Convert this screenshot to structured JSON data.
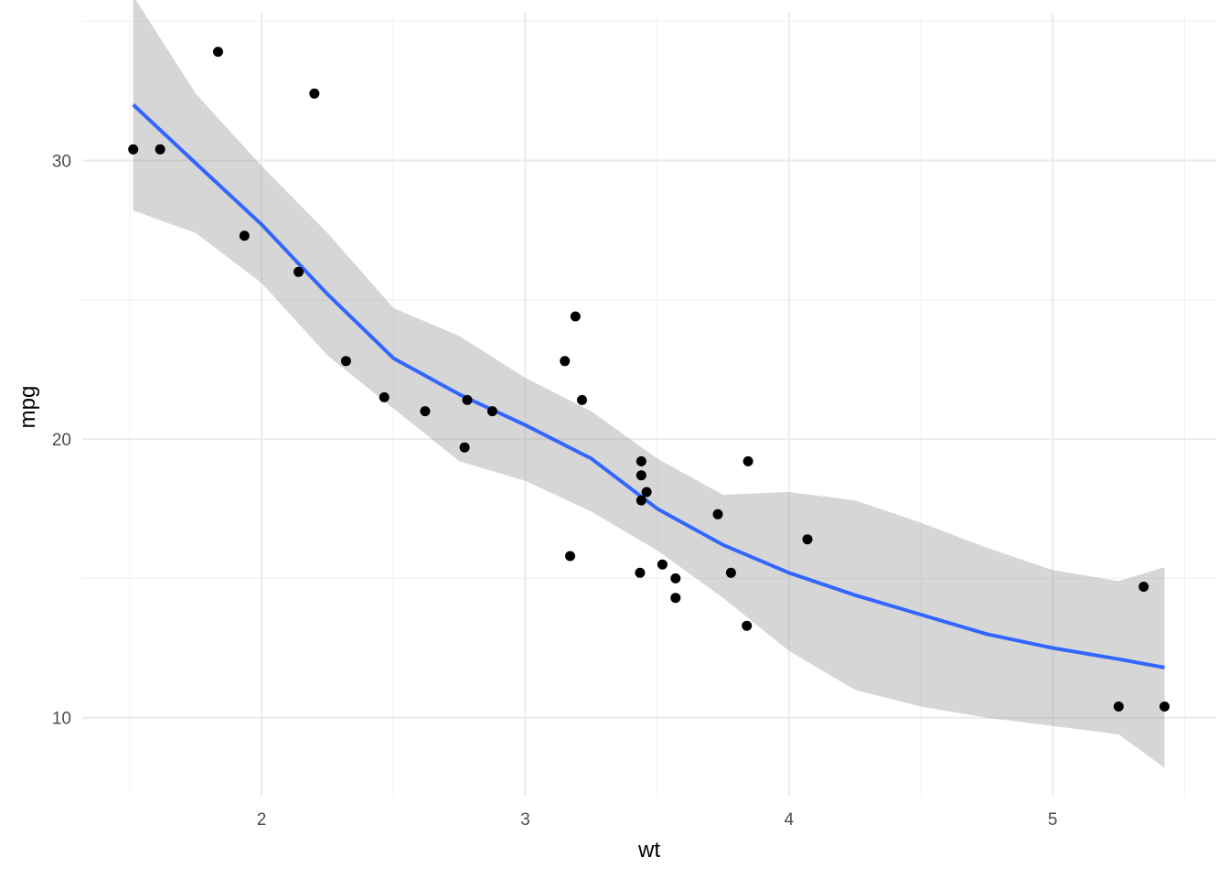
{
  "chart_data": {
    "type": "scatter",
    "xlabel": "wt",
    "ylabel": "mpg",
    "xlim": [
      1.32,
      5.62
    ],
    "ylim": [
      7.2,
      35.3
    ],
    "x_ticks": [
      2,
      3,
      4,
      5
    ],
    "x_tick_labels": [
      "2",
      "3",
      "4",
      "5"
    ],
    "y_ticks": [
      10,
      20,
      30
    ],
    "y_tick_labels": [
      "10",
      "20",
      "30"
    ],
    "x_minor_ticks": [
      1.5,
      2.5,
      3.5,
      4.5,
      5.5
    ],
    "y_minor_ticks": [
      15,
      25,
      35
    ],
    "grid": true,
    "points": [
      {
        "x": 2.62,
        "y": 21.0
      },
      {
        "x": 2.875,
        "y": 21.0
      },
      {
        "x": 2.32,
        "y": 22.8
      },
      {
        "x": 3.215,
        "y": 21.4
      },
      {
        "x": 3.44,
        "y": 18.7
      },
      {
        "x": 3.46,
        "y": 18.1
      },
      {
        "x": 3.57,
        "y": 14.3
      },
      {
        "x": 3.19,
        "y": 24.4
      },
      {
        "x": 3.15,
        "y": 22.8
      },
      {
        "x": 3.44,
        "y": 19.2
      },
      {
        "x": 3.44,
        "y": 17.8
      },
      {
        "x": 4.07,
        "y": 16.4
      },
      {
        "x": 3.73,
        "y": 17.3
      },
      {
        "x": 3.78,
        "y": 15.2
      },
      {
        "x": 5.25,
        "y": 10.4
      },
      {
        "x": 5.424,
        "y": 10.4
      },
      {
        "x": 5.345,
        "y": 14.7
      },
      {
        "x": 2.2,
        "y": 32.4
      },
      {
        "x": 1.615,
        "y": 30.4
      },
      {
        "x": 1.835,
        "y": 33.9
      },
      {
        "x": 2.465,
        "y": 21.5
      },
      {
        "x": 3.52,
        "y": 15.5
      },
      {
        "x": 3.435,
        "y": 15.2
      },
      {
        "x": 3.84,
        "y": 13.3
      },
      {
        "x": 3.845,
        "y": 19.2
      },
      {
        "x": 1.935,
        "y": 27.3
      },
      {
        "x": 2.14,
        "y": 26.0
      },
      {
        "x": 1.513,
        "y": 30.4
      },
      {
        "x": 3.17,
        "y": 15.8
      },
      {
        "x": 2.77,
        "y": 19.7
      },
      {
        "x": 3.57,
        "y": 15.0
      },
      {
        "x": 2.78,
        "y": 21.4
      }
    ],
    "smooth": {
      "x": [
        1.513,
        1.75,
        2.0,
        2.25,
        2.5,
        2.75,
        3.0,
        3.25,
        3.5,
        3.75,
        4.0,
        4.25,
        4.5,
        4.75,
        5.0,
        5.25,
        5.424
      ],
      "y": [
        32.0,
        29.9,
        27.7,
        25.2,
        22.9,
        21.6,
        20.5,
        19.3,
        17.5,
        16.2,
        15.2,
        14.4,
        13.7,
        13.0,
        12.5,
        12.1,
        11.8
      ],
      "lower": [
        28.2,
        27.4,
        25.6,
        23.0,
        21.1,
        19.2,
        18.5,
        17.4,
        16.0,
        14.3,
        12.4,
        11.0,
        10.4,
        10.0,
        9.7,
        9.4,
        8.2
      ],
      "upper": [
        35.9,
        32.4,
        29.8,
        27.4,
        24.7,
        23.7,
        22.2,
        21.0,
        19.3,
        18.0,
        18.1,
        17.8,
        17.0,
        16.1,
        15.3,
        14.9,
        15.4
      ]
    },
    "colors": {
      "line": "#3366ff",
      "ribbon": "#999999",
      "point": "#000000",
      "grid_major": "#ebebeb",
      "grid_minor": "#f3f3f3",
      "tick_label": "#4d4d4d"
    }
  }
}
